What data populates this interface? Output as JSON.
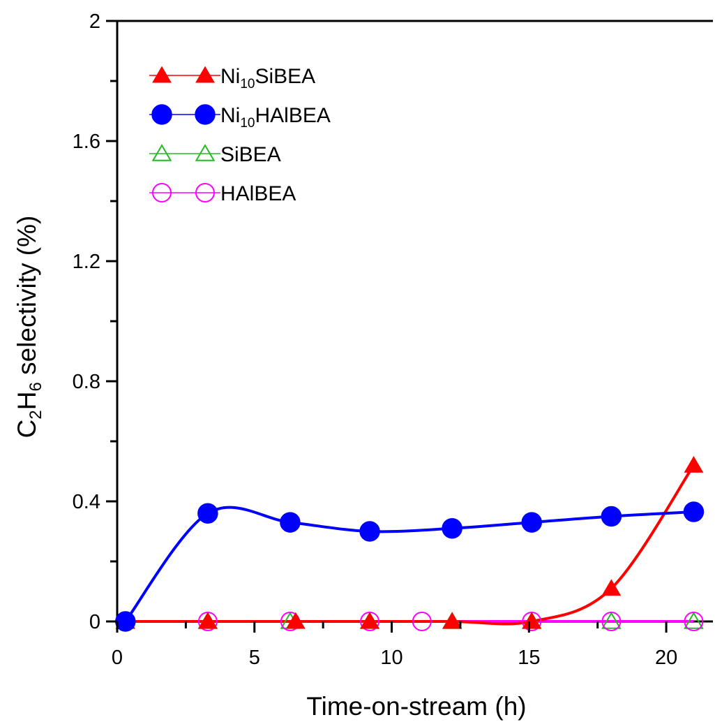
{
  "chart_data": {
    "type": "line",
    "xlabel": "Time-on-stream (h)",
    "ylabel": {
      "prefix": "C",
      "sub1": "2",
      "mid": "H",
      "sub2": "6",
      "suffix": " selectivity (%)"
    },
    "xlim": [
      0,
      21.7
    ],
    "ylim": [
      0,
      2
    ],
    "xticks": [
      0,
      5,
      10,
      15,
      20
    ],
    "xtick_labels": [
      "0",
      "5",
      "10",
      "15",
      "20"
    ],
    "yticks": [
      0,
      0.4,
      0.8,
      1.2,
      1.6,
      2
    ],
    "ytick_labels": [
      "0",
      "0.4",
      "0.8",
      "1.2",
      "1.6",
      "2"
    ],
    "legend_position": "top-left",
    "series": [
      {
        "name": "Ni10SiBEA",
        "label_base": "Ni",
        "label_sub": "10",
        "label_rest": "SiBEA",
        "color": "#ff0000",
        "marker": "triangle",
        "filled": true,
        "x": [
          0.3,
          3.3,
          6.5,
          9.2,
          12.2,
          15.1,
          18.0,
          21.0
        ],
        "y": [
          0,
          0,
          0,
          0,
          0,
          0,
          0.11,
          0.52
        ]
      },
      {
        "name": "Ni10HAlBEA",
        "label_base": "Ni",
        "label_sub": "10",
        "label_rest": "HAlBEA",
        "color": "#0000ff",
        "marker": "circle",
        "filled": true,
        "x": [
          0.3,
          3.3,
          6.3,
          9.2,
          12.2,
          15.1,
          18.0,
          21.0
        ],
        "y": [
          0,
          0.36,
          0.33,
          0.3,
          0.31,
          0.33,
          0.35,
          0.365
        ]
      },
      {
        "name": "SiBEA",
        "label_base": "SiBEA",
        "label_sub": "",
        "label_rest": "",
        "color": "#22bb22",
        "marker": "triangle",
        "filled": false,
        "x": [
          0.3,
          3.3,
          6.3,
          9.2,
          12.2,
          15.1,
          18.0,
          21.0
        ],
        "y": [
          0,
          0,
          0,
          0,
          0,
          0,
          0,
          0
        ]
      },
      {
        "name": "HAlBEA",
        "label_base": "HAlBEA",
        "label_sub": "",
        "label_rest": "",
        "color": "#ff00ff",
        "marker": "circle",
        "filled": false,
        "x": [
          0.3,
          3.3,
          6.3,
          9.2,
          11.1,
          15.1,
          18.0,
          21.0
        ],
        "y": [
          0,
          0,
          0,
          0,
          0,
          0,
          0,
          0
        ]
      }
    ]
  }
}
